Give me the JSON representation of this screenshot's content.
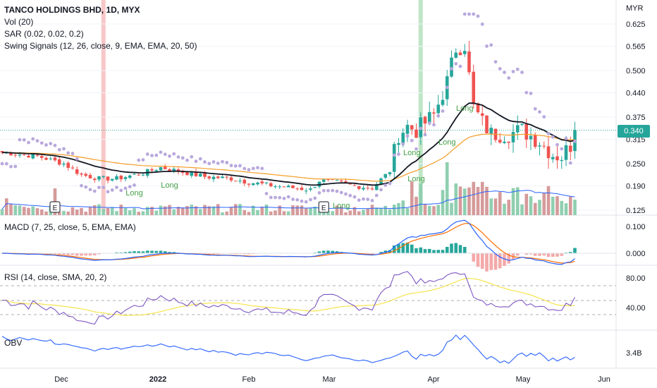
{
  "header": {
    "title": "TANCO HOLDINGS BHD, 1D, MYX",
    "indicators": [
      "Vol (20)",
      "SAR (0.02, 0.02, 0.2)",
      "Swing Signals (12, 26, close, 9, EMA, EMA, 20, 50)"
    ]
  },
  "price_axis": {
    "currency": "MYR",
    "ticks": [
      "0.625",
      "0.565",
      "0.500",
      "0.440",
      "0.375",
      "0.315",
      "0.250",
      "0.190",
      "0.125"
    ],
    "last_price": "0.340"
  },
  "panes": {
    "macd": {
      "label": "MACD (7, 25, close, 5, EMA, EMA)",
      "ticks": [
        "0.100",
        "0.000"
      ]
    },
    "rsi": {
      "label": "RSI (14, close, SMA, 20, 2)",
      "ticks": [
        "80.00",
        "40.00"
      ]
    },
    "obv": {
      "label": "OBV",
      "ticks": [
        "3.4B"
      ]
    }
  },
  "time_axis": {
    "labels": [
      "Dec",
      "2022",
      "Feb",
      "Mar",
      "Apr",
      "May",
      "Jun"
    ]
  },
  "signals": {
    "long_labels": [
      "Long",
      "Long",
      "Long",
      "Long",
      "Long",
      "Long",
      "Long"
    ],
    "earnings_labels": [
      "E",
      "E"
    ]
  },
  "colors": {
    "up": "#26a69a",
    "down": "#ef5350",
    "ema_black": "#131722",
    "ema_orange": "#f59c26",
    "sar": "#b9a8dd",
    "vol_ma": "#2962ff",
    "macd": "#2962ff",
    "signal": "#ff6d00",
    "rsi": "#7e57c2",
    "rsi_ma": "#f7e34d",
    "obv": "#2962ff",
    "highlight_red": "#f8c7c7",
    "highlight_green": "#bfe5c6"
  },
  "chart_data": {
    "type": "candlestick",
    "title": "TANCO HOLDINGS BHD, 1D, MYX",
    "ylim": [
      0.115,
      0.655
    ],
    "x_labels": [
      "Dec",
      "2022",
      "Feb",
      "Mar",
      "Apr",
      "May",
      "Jun"
    ],
    "price_keypoints": [
      [
        0,
        0.28
      ],
      [
        8,
        0.27
      ],
      [
        14,
        0.25
      ],
      [
        18,
        0.22
      ],
      [
        22,
        0.21
      ],
      [
        26,
        0.21
      ],
      [
        32,
        0.225
      ],
      [
        36,
        0.24
      ],
      [
        40,
        0.23
      ],
      [
        46,
        0.215
      ],
      [
        52,
        0.21
      ],
      [
        56,
        0.2
      ],
      [
        62,
        0.19
      ],
      [
        66,
        0.185
      ],
      [
        70,
        0.18
      ],
      [
        72,
        0.205
      ],
      [
        76,
        0.2
      ],
      [
        80,
        0.19
      ],
      [
        84,
        0.185
      ],
      [
        88,
        0.23
      ],
      [
        90,
        0.33
      ],
      [
        92,
        0.35
      ],
      [
        94,
        0.34
      ],
      [
        98,
        0.38
      ],
      [
        101,
        0.47
      ],
      [
        103,
        0.56
      ],
      [
        105,
        0.57
      ],
      [
        107,
        0.4
      ],
      [
        109,
        0.36
      ],
      [
        111,
        0.33
      ],
      [
        115,
        0.33
      ],
      [
        118,
        0.34
      ],
      [
        122,
        0.31
      ],
      [
        125,
        0.275
      ],
      [
        127,
        0.27
      ],
      [
        129,
        0.3
      ],
      [
        130,
        0.34
      ]
    ],
    "last_close": 0.34,
    "panes": [
      "Vol (20)",
      "MACD (7, 25, close, 5, EMA, EMA)",
      "RSI (14, close, SMA, 20, 2)",
      "OBV"
    ]
  }
}
